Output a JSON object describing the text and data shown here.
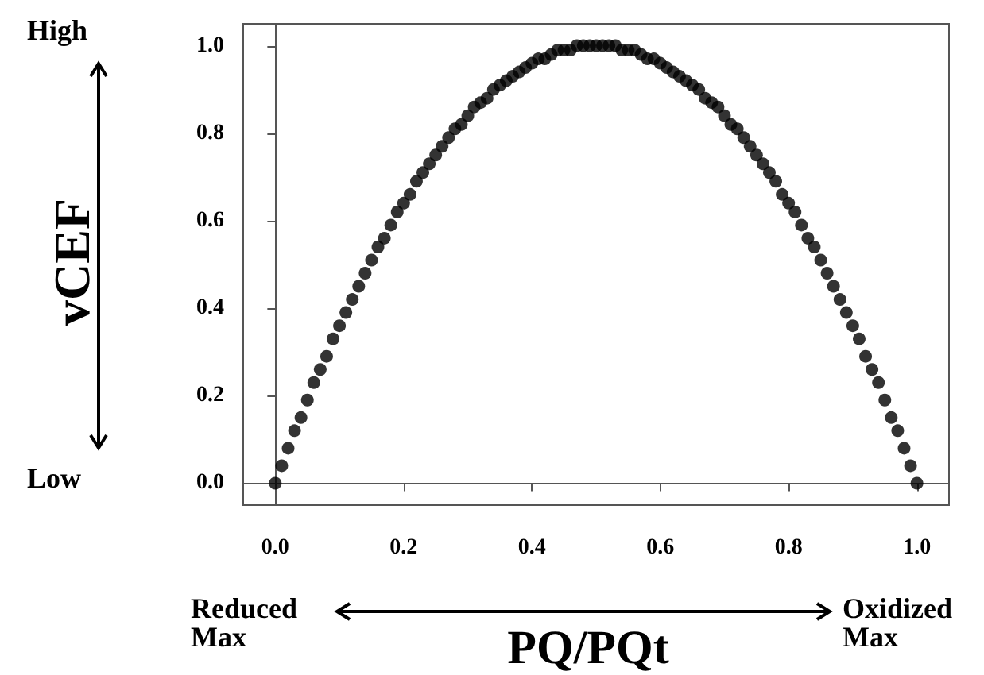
{
  "chart_data": {
    "type": "scatter",
    "xlabel": "PQ/PQt",
    "ylabel": "vCEF",
    "annotations": [
      "High",
      "Low",
      "Reduced\nMax",
      "Oxidized\nMax"
    ],
    "x": [
      0,
      0.01,
      0.02,
      0.03,
      0.04,
      0.05,
      0.06,
      0.07,
      0.08,
      0.09,
      0.1,
      0.11,
      0.12,
      0.13,
      0.14,
      0.15,
      0.16,
      0.17,
      0.18,
      0.19,
      0.2,
      0.21,
      0.22,
      0.23,
      0.24,
      0.25,
      0.26,
      0.27,
      0.28,
      0.29,
      0.3,
      0.31,
      0.32,
      0.33,
      0.34,
      0.35,
      0.36,
      0.37,
      0.38,
      0.39,
      0.4,
      0.41,
      0.42,
      0.43,
      0.44,
      0.45,
      0.46,
      0.47,
      0.48,
      0.49,
      0.5,
      0.51,
      0.52,
      0.53,
      0.54,
      0.55,
      0.56,
      0.57,
      0.58,
      0.59,
      0.6,
      0.61,
      0.62,
      0.63,
      0.64,
      0.65,
      0.66,
      0.67,
      0.68,
      0.69,
      0.7,
      0.71,
      0.72,
      0.73,
      0.74,
      0.75,
      0.76,
      0.77,
      0.78,
      0.79,
      0.8,
      0.81,
      0.82,
      0.83,
      0.84,
      0.85,
      0.86,
      0.87,
      0.88,
      0.89,
      0.9,
      0.91,
      0.92,
      0.93,
      0.94,
      0.95,
      0.96,
      0.97,
      0.98,
      0.99,
      1
    ],
    "series": [
      {
        "color": "#000000",
        "values": [
          0,
          0.04,
          0.08,
          0.12,
          0.15,
          0.19,
          0.23,
          0.26,
          0.29,
          0.33,
          0.36,
          0.39,
          0.42,
          0.45,
          0.48,
          0.51,
          0.54,
          0.56,
          0.59,
          0.62,
          0.64,
          0.66,
          0.69,
          0.71,
          0.73,
          0.75,
          0.77,
          0.79,
          0.81,
          0.82,
          0.84,
          0.86,
          0.87,
          0.88,
          0.9,
          0.91,
          0.92,
          0.93,
          0.94,
          0.95,
          0.96,
          0.97,
          0.97,
          0.98,
          0.99,
          0.99,
          0.99,
          1,
          1,
          1,
          1,
          1,
          1,
          1,
          0.99,
          0.99,
          0.99,
          0.98,
          0.97,
          0.97,
          0.96,
          0.95,
          0.94,
          0.93,
          0.92,
          0.91,
          0.9,
          0.88,
          0.87,
          0.86,
          0.84,
          0.82,
          0.81,
          0.79,
          0.77,
          0.75,
          0.73,
          0.71,
          0.69,
          0.66,
          0.64,
          0.62,
          0.59,
          0.56,
          0.54,
          0.51,
          0.48,
          0.45,
          0.42,
          0.39,
          0.36,
          0.33,
          0.29,
          0.26,
          0.23,
          0.19,
          0.15,
          0.12,
          0.08,
          0.04,
          0
        ]
      }
    ],
    "xlim": [
      -0.05,
      1.05
    ],
    "ylim": [
      -0.05,
      1.05
    ],
    "xticks": [
      {
        "value": 0,
        "label": "0.0"
      },
      {
        "value": 0.2,
        "label": "0.2"
      },
      {
        "value": 0.4,
        "label": "0.4"
      },
      {
        "value": 0.6,
        "label": "0.6"
      },
      {
        "value": 0.8,
        "label": "0.8"
      },
      {
        "value": 1,
        "label": "1.0"
      }
    ],
    "yticks": [
      {
        "value": 0,
        "label": "0.0"
      },
      {
        "value": 0.2,
        "label": "0.2"
      },
      {
        "value": 0.4,
        "label": "0.4"
      },
      {
        "value": 0.6,
        "label": "0.6"
      },
      {
        "value": 0.8,
        "label": "0.8"
      },
      {
        "value": 1,
        "label": "1.0"
      }
    ],
    "marker": "circle"
  }
}
